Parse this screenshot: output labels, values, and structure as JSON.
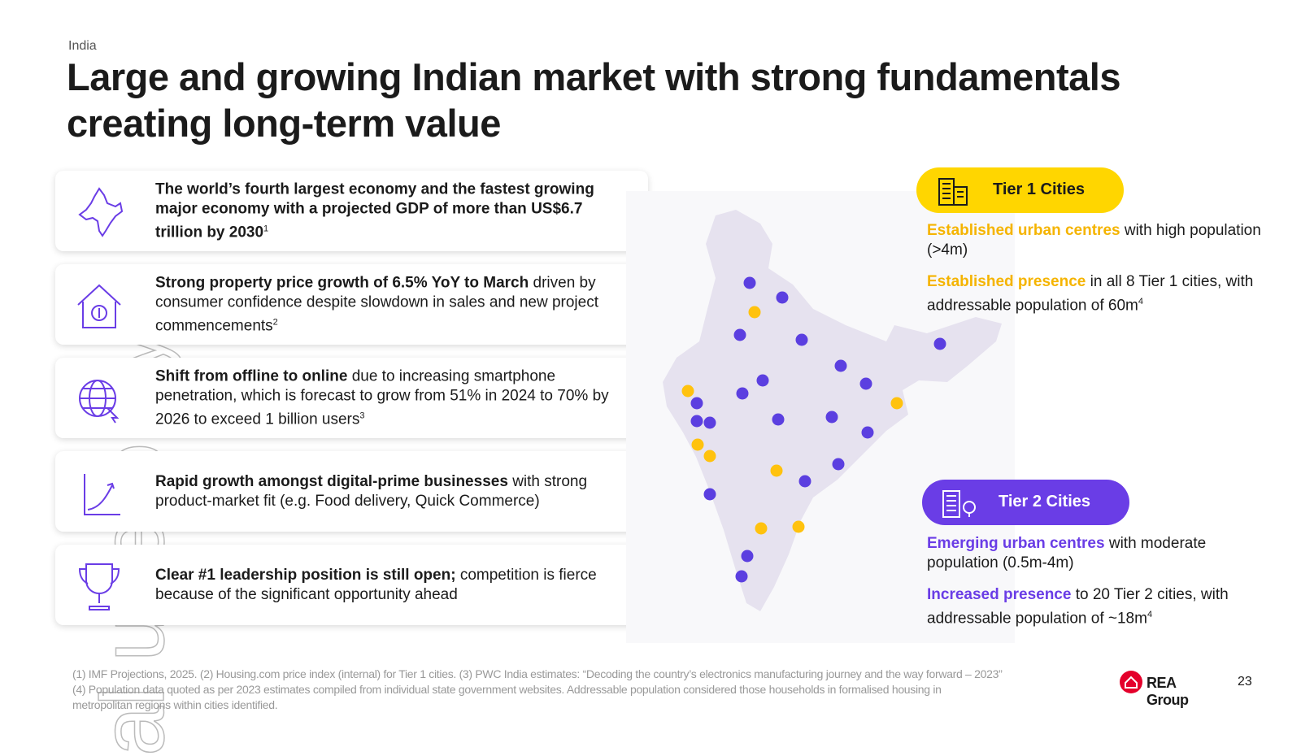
{
  "header": {
    "section": "India",
    "title": "Large and growing Indian market with strong fundamentals creating long-term value"
  },
  "points": [
    {
      "bold": "The world’s fourth largest economy and the fastest growing major economy with a projected GDP of more than US$6.7 trillion by 2030",
      "text": "",
      "note": "1"
    },
    {
      "bold": "Strong property price growth of 6.5% YoY to March",
      "text": "driven by consumer confidence despite slowdown in sales and new project commencements",
      "note": "2"
    },
    {
      "bold": "Shift from offline to online",
      "text": "due to increasing smartphone penetration, which is forecast to grow from 51% in 2024 to 70% by 2026 to exceed 1 billion users",
      "note": "3"
    },
    {
      "bold": "Rapid growth amongst digital-prime businesses",
      "text": "with strong product-market fit (e.g. Food delivery, Quick Commerce)",
      "note": ""
    },
    {
      "bold": "Clear #1 leadership position is still open;",
      "text": "competition is fierce because of the significant opportunity ahead",
      "note": ""
    }
  ],
  "tiers": [
    {
      "label": "Tier 1 Cities",
      "lines": [
        {
          "highlight": "Established urban centres",
          "text": "with high population (>4m)",
          "note": ""
        },
        {
          "highlight": "Established presence",
          "text": "in all 8 Tier 1 cities, with addressable population of 60m",
          "note": "4"
        }
      ]
    },
    {
      "label": "Tier 2 Cities",
      "lines": [
        {
          "highlight": "Emerging urban centres",
          "text": "with moderate population (0.5m-4m)",
          "note": ""
        },
        {
          "highlight": "Increased presence",
          "text": "to 20 Tier 2 cities, with addressable population of ~18m",
          "note": "4"
        }
      ]
    }
  ],
  "footnotes": [
    "(1) IMF Projections, 2025. (2) Housing.com price index (internal) for Tier 1 cities. (3) PWC India estimates: “Decoding the country’s electronics manufacturing journey and the way forward – 2023”",
    "(4) Population data quoted as per 2023 estimates compiled from individual state government websites. Addressable population considered those households in formalised housing in",
    "metropolitan regions within cities identified."
  ],
  "watermark": "al use only",
  "logo": "REA Group",
  "page_number": "23"
}
